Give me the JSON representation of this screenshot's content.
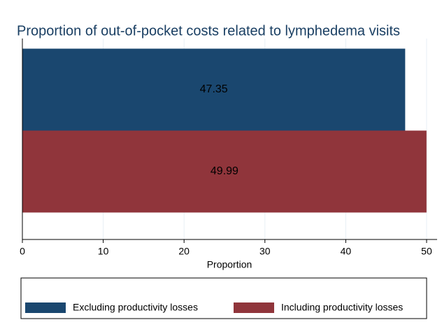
{
  "chart_data": {
    "type": "bar",
    "orientation": "horizontal",
    "title": "Proportion of out-of-pocket costs related to lymphedema visits",
    "x_label": "Proportion",
    "categories": [
      null
    ],
    "series": [
      {
        "name": "Excluding productivity losses",
        "color": "#1a476f",
        "values": [
          47.35
        ]
      },
      {
        "name": "Including productivity losses",
        "color": "#90353b",
        "values": [
          49.99
        ]
      }
    ],
    "xlim": [
      0,
      51.3
    ],
    "xticks": [
      0,
      10,
      20,
      30,
      40,
      50
    ],
    "grid": true,
    "legend": "bottom"
  }
}
